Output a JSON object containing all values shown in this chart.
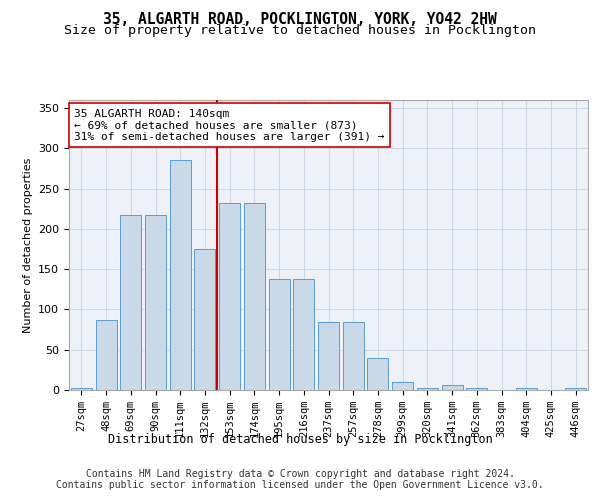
{
  "title": "35, ALGARTH ROAD, POCKLINGTON, YORK, YO42 2HW",
  "subtitle": "Size of property relative to detached houses in Pocklington",
  "xlabel": "Distribution of detached houses by size in Pocklington",
  "ylabel": "Number of detached properties",
  "categories": [
    "27sqm",
    "48sqm",
    "69sqm",
    "90sqm",
    "111sqm",
    "132sqm",
    "153sqm",
    "174sqm",
    "195sqm",
    "216sqm",
    "237sqm",
    "257sqm",
    "278sqm",
    "299sqm",
    "320sqm",
    "341sqm",
    "362sqm",
    "383sqm",
    "404sqm",
    "425sqm",
    "446sqm"
  ],
  "bar_heights": [
    2,
    87,
    217,
    217,
    285,
    175,
    232,
    232,
    138,
    138,
    85,
    85,
    40,
    10,
    2,
    6,
    2,
    0,
    2,
    0,
    2
  ],
  "bar_color": "#c9d9e8",
  "bar_edgecolor": "#5b9bd5",
  "grid_color": "#d0d8e8",
  "background_color": "#eef2f8",
  "vline_x_index": 5.5,
  "vline_color": "#cc0000",
  "annotation_line1": "35 ALGARTH ROAD: 140sqm",
  "annotation_line2": "← 69% of detached houses are smaller (873)",
  "annotation_line3": "31% of semi-detached houses are larger (391) →",
  "annotation_box_color": "#ffffff",
  "annotation_box_edgecolor": "#cc0000",
  "ylim": [
    0,
    360
  ],
  "yticks": [
    0,
    50,
    100,
    150,
    200,
    250,
    300,
    350
  ],
  "footer_line1": "Contains HM Land Registry data © Crown copyright and database right 2024.",
  "footer_line2": "Contains public sector information licensed under the Open Government Licence v3.0.",
  "title_fontsize": 10.5,
  "subtitle_fontsize": 9.5,
  "annotation_fontsize": 8,
  "footer_fontsize": 7,
  "ylabel_fontsize": 8,
  "xlabel_fontsize": 8.5,
  "tick_fontsize": 7.5,
  "ytick_fontsize": 8
}
